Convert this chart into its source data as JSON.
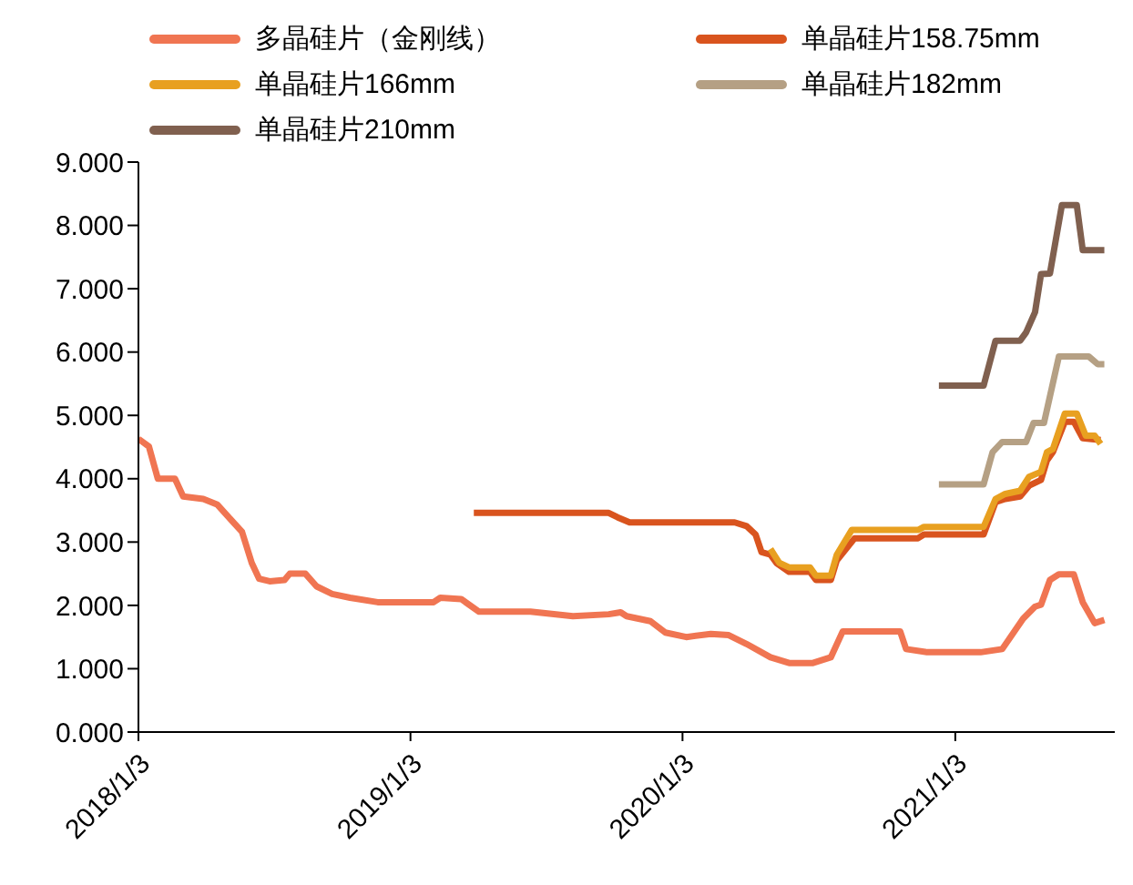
{
  "chart_data": {
    "type": "line",
    "xlim": [
      "2018-01-03",
      "2021-08-05"
    ],
    "xticks": [
      {
        "value": "2018-01-03",
        "label": "2018/1/3"
      },
      {
        "value": "2019-01-03",
        "label": "2019/1/3"
      },
      {
        "value": "2020-01-03",
        "label": "2020/1/3"
      },
      {
        "value": "2021-01-03",
        "label": "2021/1/3"
      }
    ],
    "ylim": [
      0,
      9
    ],
    "yticks": [
      {
        "value": 0,
        "label": "0.000"
      },
      {
        "value": 1,
        "label": "1.000"
      },
      {
        "value": 2,
        "label": "2.000"
      },
      {
        "value": 3,
        "label": "3.000"
      },
      {
        "value": 4,
        "label": "4.000"
      },
      {
        "value": 5,
        "label": "5.000"
      },
      {
        "value": 6,
        "label": "6.000"
      },
      {
        "value": 7,
        "label": "7.000"
      },
      {
        "value": 8,
        "label": "8.000"
      },
      {
        "value": 9,
        "label": "9.000"
      }
    ],
    "grid": false,
    "legend": "top",
    "marker": "none",
    "line_style": "solid",
    "series": [
      {
        "name": "多晶硅片（金刚线）",
        "color": "#f07552",
        "x": [
          "2018-01-03",
          "2018-01-17",
          "2018-01-29",
          "2018-02-21",
          "2018-03-04",
          "2018-03-31",
          "2018-04-19",
          "2018-05-22",
          "2018-06-04",
          "2018-06-14",
          "2018-06-28",
          "2018-07-18",
          "2018-07-25",
          "2018-08-15",
          "2018-08-30",
          "2018-09-20",
          "2018-10-14",
          "2018-11-20",
          "2019-02-03",
          "2019-02-12",
          "2019-03-12",
          "2019-04-05",
          "2019-06-13",
          "2019-08-09",
          "2019-09-26",
          "2019-10-12",
          "2019-10-20",
          "2019-11-21",
          "2019-12-11",
          "2020-01-08",
          "2020-02-10",
          "2020-03-05",
          "2020-03-29",
          "2020-04-30",
          "2020-05-25",
          "2020-06-26",
          "2020-07-20",
          "2020-08-05",
          "2020-10-21",
          "2020-10-29",
          "2020-11-26",
          "2021-02-06",
          "2021-03-07",
          "2021-04-04",
          "2021-04-20",
          "2021-04-28",
          "2021-05-10",
          "2021-05-22",
          "2021-06-11",
          "2021-06-23",
          "2021-07-09",
          "2021-07-22"
        ],
        "values": [
          4.63,
          4.51,
          4.0,
          4.0,
          3.72,
          3.68,
          3.59,
          3.16,
          2.67,
          2.42,
          2.38,
          2.4,
          2.5,
          2.5,
          2.3,
          2.18,
          2.12,
          2.05,
          2.05,
          2.12,
          2.1,
          1.9,
          1.9,
          1.83,
          1.86,
          1.89,
          1.83,
          1.75,
          1.57,
          1.5,
          1.55,
          1.53,
          1.39,
          1.18,
          1.09,
          1.09,
          1.18,
          1.59,
          1.59,
          1.31,
          1.26,
          1.26,
          1.31,
          1.79,
          1.98,
          2.01,
          2.4,
          2.49,
          2.49,
          2.05,
          1.72,
          1.77
        ]
      },
      {
        "name": "单晶硅片158.75mm",
        "color": "#d9541e",
        "x": [
          "2019-03-29",
          "2019-09-26",
          "2019-10-08",
          "2019-10-24",
          "2020-03-13",
          "2020-03-29",
          "2020-04-10",
          "2020-04-18",
          "2020-04-30",
          "2020-05-08",
          "2020-05-25",
          "2020-06-22",
          "2020-06-30",
          "2020-07-20",
          "2020-07-28",
          "2020-08-21",
          "2020-11-14",
          "2020-11-22",
          "2021-02-10",
          "2021-02-26",
          "2021-03-11",
          "2021-03-31",
          "2021-04-12",
          "2021-04-28",
          "2021-05-06",
          "2021-05-14",
          "2021-05-30",
          "2021-06-11",
          "2021-06-23",
          "2021-07-17"
        ],
        "values": [
          3.46,
          3.46,
          3.39,
          3.31,
          3.31,
          3.25,
          3.12,
          2.84,
          2.8,
          2.67,
          2.53,
          2.53,
          2.4,
          2.4,
          2.71,
          3.06,
          3.06,
          3.12,
          3.12,
          3.63,
          3.68,
          3.72,
          3.89,
          3.98,
          4.29,
          4.42,
          4.9,
          4.9,
          4.64,
          4.61
        ]
      },
      {
        "name": "单晶硅片166mm",
        "color": "#e8a020",
        "x": [
          "2020-04-30",
          "2020-05-12",
          "2020-05-25",
          "2020-06-22",
          "2020-06-30",
          "2020-07-20",
          "2020-07-28",
          "2020-08-17",
          "2020-11-14",
          "2020-11-22",
          "2021-02-10",
          "2021-02-26",
          "2021-03-11",
          "2021-03-31",
          "2021-04-12",
          "2021-04-28",
          "2021-05-06",
          "2021-05-14",
          "2021-05-30",
          "2021-06-15",
          "2021-06-27",
          "2021-07-09",
          "2021-07-17"
        ],
        "values": [
          2.89,
          2.67,
          2.6,
          2.6,
          2.47,
          2.47,
          2.8,
          3.19,
          3.19,
          3.24,
          3.24,
          3.68,
          3.76,
          3.81,
          4.03,
          4.11,
          4.42,
          4.47,
          5.03,
          5.03,
          4.68,
          4.68,
          4.55
        ]
      },
      {
        "name": "单晶硅片182mm",
        "color": "#b5a084",
        "x": [
          "2020-12-12",
          "2021-02-10",
          "2021-02-22",
          "2021-03-07",
          "2021-04-08",
          "2021-04-18",
          "2021-05-02",
          "2021-05-22",
          "2021-07-01",
          "2021-07-13",
          "2021-07-22"
        ],
        "values": [
          3.91,
          3.91,
          4.42,
          4.58,
          4.58,
          4.88,
          4.88,
          5.93,
          5.93,
          5.81,
          5.81
        ]
      },
      {
        "name": "单晶硅片210mm",
        "color": "#80604f",
        "x": [
          "2020-12-12",
          "2021-02-10",
          "2021-02-26",
          "2021-03-31",
          "2021-04-08",
          "2021-04-20",
          "2021-04-28",
          "2021-05-10",
          "2021-05-26",
          "2021-06-15",
          "2021-06-23",
          "2021-07-22"
        ],
        "values": [
          5.47,
          5.47,
          6.18,
          6.18,
          6.31,
          6.63,
          7.23,
          7.24,
          8.32,
          8.32,
          7.61,
          7.61
        ]
      }
    ]
  }
}
